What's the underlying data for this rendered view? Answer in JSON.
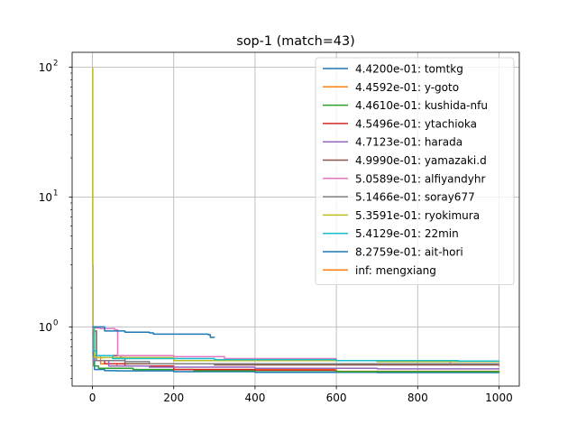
{
  "chart_data": {
    "type": "line",
    "title": "sop-1 (match=43)",
    "xlabel": "",
    "ylabel": "",
    "xlim": [
      -50,
      1050
    ],
    "ylim": [
      0.35,
      130
    ],
    "yscale": "log",
    "grid": true,
    "legend": "top-right",
    "x_ticks": [
      0,
      200,
      400,
      600,
      800,
      1000
    ],
    "x_tick_labels": [
      "0",
      "200",
      "400",
      "600",
      "800",
      "1000"
    ],
    "y_ticks": [
      1,
      10,
      100
    ],
    "y_tick_labels": [
      "10",
      "10",
      "10"
    ],
    "y_tick_exponents": [
      "0",
      "1",
      "2"
    ],
    "series": [
      {
        "name": "4.4200e-01: tomtkg",
        "color": "#1f77b4",
        "points": [
          [
            0,
            0.98
          ],
          [
            2,
            0.6
          ],
          [
            5,
            0.47
          ],
          [
            30,
            0.46
          ],
          [
            60,
            0.458
          ],
          [
            200,
            0.452
          ],
          [
            400,
            0.447
          ],
          [
            700,
            0.445
          ],
          [
            1000,
            0.442
          ]
        ]
      },
      {
        "name": "4.4592e-01: y-goto",
        "color": "#ff7f0e",
        "points": [
          [
            0,
            0.95
          ],
          [
            4,
            0.6
          ],
          [
            20,
            0.52
          ],
          [
            60,
            0.5
          ],
          [
            200,
            0.47
          ],
          [
            600,
            0.455
          ],
          [
            1000,
            0.4459
          ]
        ]
      },
      {
        "name": "4.4610e-01: kushida-nfu",
        "color": "#2ca02c",
        "points": [
          [
            0,
            0.85
          ],
          [
            3,
            0.5
          ],
          [
            15,
            0.48
          ],
          [
            100,
            0.47
          ],
          [
            250,
            0.46
          ],
          [
            600,
            0.452
          ],
          [
            1000,
            0.4461
          ]
        ]
      },
      {
        "name": "4.5496e-01: ytachioka",
        "color": "#d62728",
        "points": [
          [
            0,
            0.9
          ],
          [
            5,
            0.55
          ],
          [
            30,
            0.52
          ],
          [
            80,
            0.5
          ],
          [
            200,
            0.47
          ],
          [
            400,
            0.465
          ],
          [
            595,
            0.455
          ]
        ]
      },
      {
        "name": "4.7123e-01: harada",
        "color": "#9467bd",
        "points": [
          [
            0,
            0.88
          ],
          [
            4,
            0.55
          ],
          [
            40,
            0.5
          ],
          [
            140,
            0.49
          ],
          [
            400,
            0.48
          ],
          [
            700,
            0.475
          ],
          [
            1000,
            0.4712
          ]
        ]
      },
      {
        "name": "4.9990e-01: yamazaki.d",
        "color": "#8c564b",
        "points": [
          [
            0,
            0.93
          ],
          [
            10,
            0.6
          ],
          [
            70,
            0.58
          ],
          [
            80,
            0.52
          ],
          [
            300,
            0.51
          ],
          [
            1000,
            0.4999
          ]
        ]
      },
      {
        "name": "5.0589e-01: alfiyandyhr",
        "color": "#e377c2",
        "points": [
          [
            0,
            0.98
          ],
          [
            20,
            0.97
          ],
          [
            55,
            0.95
          ],
          [
            62,
            0.6
          ],
          [
            200,
            0.59
          ],
          [
            325,
            0.57
          ],
          [
            600,
            0.55
          ],
          [
            880,
            0.52
          ],
          [
            1000,
            0.5059
          ]
        ]
      },
      {
        "name": "5.1466e-01: soray677",
        "color": "#7f7f7f",
        "points": [
          [
            0,
            0.92
          ],
          [
            10,
            0.55
          ],
          [
            80,
            0.54
          ],
          [
            140,
            0.52
          ],
          [
            500,
            0.52
          ],
          [
            1000,
            0.5147
          ]
        ]
      },
      {
        "name": "5.3591e-01: ryokimura",
        "color": "#bcbd22",
        "points": [
          [
            0,
            98
          ],
          [
            0.8,
            3
          ],
          [
            1.5,
            1.0
          ],
          [
            5,
            0.58
          ],
          [
            200,
            0.55
          ],
          [
            700,
            0.54
          ],
          [
            1000,
            0.5359
          ]
        ]
      },
      {
        "name": "5.4129e-01: 22min",
        "color": "#17becf",
        "points": [
          [
            0,
            1.0
          ],
          [
            3,
            0.65
          ],
          [
            10,
            0.6
          ],
          [
            50,
            0.57
          ],
          [
            300,
            0.56
          ],
          [
            600,
            0.55
          ],
          [
            900,
            0.545
          ],
          [
            1000,
            0.5413
          ]
        ]
      },
      {
        "name": "8.2759e-01: ait-hori",
        "color": "#1f77b4",
        "points": [
          [
            0,
            1.0
          ],
          [
            30,
            0.93
          ],
          [
            80,
            0.91
          ],
          [
            140,
            0.9
          ],
          [
            150,
            0.88
          ],
          [
            250,
            0.88
          ],
          [
            285,
            0.87
          ],
          [
            290,
            0.83
          ],
          [
            300,
            0.8276
          ]
        ]
      },
      {
        "name": "inf: mengxiang",
        "color": "#ff7f0e",
        "points": []
      }
    ]
  }
}
